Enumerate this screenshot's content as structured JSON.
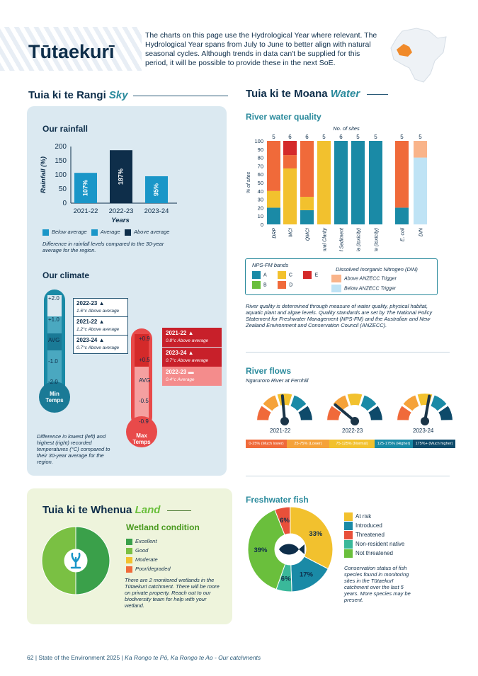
{
  "header": {
    "title": "Tūtaekurī",
    "intro": "The charts on this page use the Hydrological Year where relevant. The Hydrological Year spans from July to June to better align with natural seasonal cycles. Although trends in data can't be supplied for this period, it will be possible to provide these in the next SoE."
  },
  "sky": {
    "heading": "Tuia ki te Rangi",
    "heading_en": "Sky",
    "rainfall": {
      "title": "Our rainfall",
      "caption": "Difference in rainfall levels compared to the 30-year average for the region.",
      "legend": [
        "Below average",
        "Average",
        "Above average"
      ],
      "colors": {
        "below": "#1a96c8",
        "average": "#1a96c8",
        "above": "#0e2e4a"
      }
    },
    "climate": {
      "title": "Our climate",
      "min_label": "Min Temps",
      "max_label": "Max Temps",
      "min_ticks": [
        "+2.0",
        "+1.0",
        "AVG",
        "-1.0",
        "-2.0"
      ],
      "max_ticks": [
        "+0.9",
        "+0.5",
        "AVG",
        "-0.5",
        "-0.9"
      ],
      "min_callouts": [
        {
          "year": "2022-23",
          "text": "1.6°c Above average"
        },
        {
          "year": "2021-22",
          "text": "1.2°c Above average"
        },
        {
          "year": "2023-24",
          "text": "0.7°c Above average"
        }
      ],
      "max_callouts": [
        {
          "year": "2021-22",
          "text": "0.8°c Above average"
        },
        {
          "year": "2023-24",
          "text": "0.7°c Above average"
        },
        {
          "year": "2022-23",
          "text": "0.4°c Average"
        }
      ],
      "caption": "Difference in lowest (left) and highest (right) recorded temperatures (°C) compared to their 30-year average for the region."
    }
  },
  "water": {
    "heading": "Tuia ki te Moana",
    "heading_en": "Water",
    "quality": {
      "title": "River water quality",
      "caption": "River quality is determined through measure of water quality, physical habitat, aquatic plant and algae levels. Quality standards are set by The National Policy Statement for Freshwater Management (NPS-FM) and the Australian and New Zealand Environment and Conservation Council (ANZECC).",
      "nps_title": "NPS-FM bands",
      "nps_bands": [
        {
          "label": "A",
          "color": "#1a8aa6"
        },
        {
          "label": "B",
          "color": "#6abf3c"
        },
        {
          "label": "C",
          "color": "#f2c12e"
        },
        {
          "label": "D",
          "color": "#f06a3a"
        },
        {
          "label": "E",
          "color": "#d42a2a"
        }
      ],
      "din_title": "Dissolved Inorganic Nitrogen (DIN)",
      "din_legend": [
        {
          "label": "Above ANZECC Trigger",
          "color": "#f9b48a"
        },
        {
          "label": "Below ANZECC Trigger",
          "color": "#bfe3f5"
        }
      ]
    },
    "flows": {
      "title": "River flows",
      "site": "Ngaruroro River at Fernhill",
      "years": [
        "2021-22",
        "2022-23",
        "2023-24"
      ],
      "needles_deg": [
        95,
        140,
        80
      ],
      "bands": [
        {
          "label": "0-25% (Much lower)",
          "color": "#f06a3a"
        },
        {
          "label": "25-75% (Lower)",
          "color": "#f5a23a"
        },
        {
          "label": "75-125% (Normal)",
          "color": "#f2c12e"
        },
        {
          "label": "125-175% (Higher)",
          "color": "#1a8aa6"
        },
        {
          "label": "175%+ (Much higher)",
          "color": "#0e4a6a"
        }
      ]
    },
    "fish": {
      "title": "Freshwater fish",
      "legend": [
        {
          "label": "At risk",
          "color": "#f2c12e"
        },
        {
          "label": "Introduced",
          "color": "#1a8aa6"
        },
        {
          "label": "Threatened",
          "color": "#e8503a"
        },
        {
          "label": "Non-resident native",
          "color": "#3ab89a"
        },
        {
          "label": "Not threatened",
          "color": "#6abf3c"
        }
      ],
      "slice_labels": [
        "6%",
        "33%",
        "17%",
        "6%",
        "39%"
      ],
      "caption": "Conservation status of fish species found in monitoring sites in the Tūtaekurī catchment over the last 5 years. More species may be present."
    }
  },
  "land": {
    "heading": "Tuia ki te Whenua",
    "heading_en": "Land",
    "wetland_title": "Wetland condition",
    "legend": [
      {
        "label": "Excellent",
        "color": "#3aa04a"
      },
      {
        "label": "Good",
        "color": "#7ac043"
      },
      {
        "label": "Moderate",
        "color": "#f2c12e"
      },
      {
        "label": "Poor/degraded",
        "color": "#f06a3a"
      }
    ],
    "caption": "There are 2 monitored wetlands in the Tūtaekurī catchment. There will be more on private property. Reach out to our biodiversity team for help with your wetland."
  },
  "footer": {
    "page": "62",
    "text": "State of the Environment 2025",
    "sub": "Ka Rongo te Pō, Ka Rongo te Ao - Our catchments"
  },
  "chart_data": [
    {
      "type": "bar",
      "title": "Our rainfall",
      "categories": [
        "2021-22",
        "2022-23",
        "2023-24"
      ],
      "values": [
        107,
        187,
        95
      ],
      "value_labels": [
        "107%",
        "187%",
        "95%"
      ],
      "xlabel": "Years",
      "ylabel": "Rainfall (%)",
      "ylim": [
        0,
        200
      ],
      "yticks": [
        0,
        50,
        100,
        150,
        200
      ]
    },
    {
      "type": "bar",
      "title": "River water quality",
      "stacked": true,
      "ylabel": "% of sites",
      "ylim": [
        0,
        100
      ],
      "yticks": [
        0,
        10,
        20,
        30,
        40,
        50,
        60,
        70,
        80,
        90,
        100
      ],
      "top_label": "No. of sites",
      "categories": [
        "DRP",
        "MCI",
        "QMCI",
        "Visual Clarity",
        "Deposited Sediment",
        "Ammonia (toxicity)",
        "Nitrate (toxicity)",
        "E. coli",
        "DIN"
      ],
      "site_counts": [
        5,
        6,
        6,
        5,
        6,
        5,
        5,
        5,
        5
      ],
      "series": [
        {
          "name": "A",
          "values": [
            20,
            0,
            17,
            0,
            100,
            100,
            100,
            20,
            0
          ]
        },
        {
          "name": "B",
          "values": [
            0,
            0,
            0,
            0,
            0,
            0,
            0,
            0,
            0
          ]
        },
        {
          "name": "C",
          "values": [
            20,
            67,
            16,
            100,
            0,
            0,
            0,
            0,
            0
          ]
        },
        {
          "name": "D",
          "values": [
            60,
            16,
            67,
            0,
            0,
            0,
            0,
            80,
            0
          ]
        },
        {
          "name": "E",
          "values": [
            0,
            17,
            0,
            0,
            0,
            0,
            0,
            0,
            0
          ]
        },
        {
          "name": "Below ANZECC Trigger",
          "values": [
            0,
            0,
            0,
            0,
            0,
            0,
            0,
            0,
            80
          ]
        },
        {
          "name": "Above ANZECC Trigger",
          "values": [
            0,
            0,
            0,
            0,
            0,
            0,
            0,
            0,
            20
          ]
        }
      ]
    },
    {
      "type": "pie",
      "title": "Freshwater fish",
      "categories": [
        "Threatened",
        "At risk",
        "Introduced",
        "Non-resident native",
        "Not threatened"
      ],
      "values": [
        6,
        33,
        17,
        6,
        39
      ]
    },
    {
      "type": "pie",
      "title": "Wetland condition",
      "categories": [
        "Excellent",
        "Good"
      ],
      "values": [
        50,
        50
      ]
    }
  ]
}
